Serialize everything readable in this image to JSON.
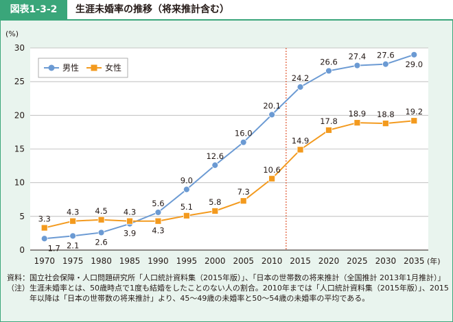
{
  "figure": {
    "label": "図表1-3-2",
    "title": "生涯未婚率の推移（将来推計含む）"
  },
  "chart_data": {
    "type": "line",
    "y_unit_label": "(%)",
    "x_unit_label": "(年)",
    "categories": [
      "1970",
      "1975",
      "1980",
      "1985",
      "1990",
      "1995",
      "2000",
      "2005",
      "2010",
      "2015",
      "2020",
      "2025",
      "2030",
      "2035"
    ],
    "ylim": [
      0,
      30
    ],
    "yticks": [
      0,
      5,
      10,
      15,
      20,
      25,
      30
    ],
    "grid": true,
    "legend_position": "top-left",
    "projection_divider_after": "2010",
    "series": [
      {
        "name": "男性",
        "color": "#6b9ad3",
        "marker": "circle",
        "values": [
          1.7,
          2.1,
          2.6,
          3.9,
          5.6,
          9.0,
          12.6,
          16.0,
          20.1,
          24.2,
          26.6,
          27.4,
          27.6,
          29.0
        ],
        "labels": [
          "1.7",
          "2.1",
          "2.6",
          "3.9",
          "5.6",
          "9.0",
          "12.6",
          "16.0",
          "20.1",
          "24.2",
          "26.6",
          "27.4",
          "27.6",
          "29.0"
        ]
      },
      {
        "name": "女性",
        "color": "#f39a1e",
        "marker": "square",
        "values": [
          3.3,
          4.3,
          4.5,
          4.3,
          4.3,
          5.1,
          5.8,
          7.3,
          10.6,
          14.9,
          17.8,
          18.9,
          18.8,
          19.2
        ],
        "labels": [
          "3.3",
          "4.3",
          "4.5",
          "4.3",
          "4.3",
          "5.1",
          "5.8",
          "7.3",
          "10.6",
          "14.9",
          "17.8",
          "18.9",
          "18.8",
          "19.2"
        ]
      }
    ]
  },
  "notes": [
    {
      "tag": "資料：",
      "text": "国立社会保障・人口問題研究所「人口統計資料集（2015年版）」、「日本の世帯数の将来推計（全国推計 2013年1月推計）」"
    },
    {
      "tag": "（注）",
      "text": "生涯未婚率とは、50歳時点で1度も結婚をしたことのない人の割合。2010年までは「人口統計資料集（2015年版）」、2015年以降は「日本の世帯数の将来推計」より、45～49歳の未婚率と50～54歳の未婚率の平均である。"
    }
  ]
}
